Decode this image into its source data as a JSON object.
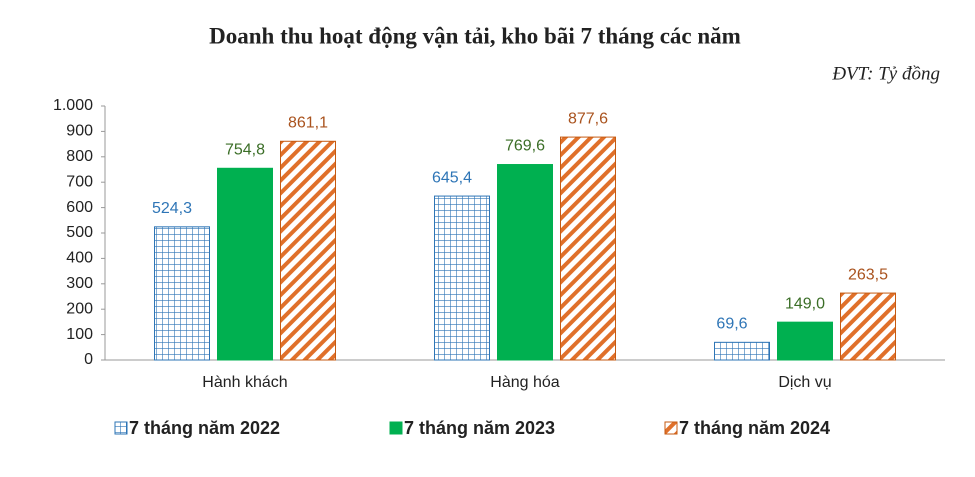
{
  "chart_data": {
    "type": "bar",
    "title": "Doanh thu hoạt động vận tải, kho bãi 7 tháng các năm",
    "unit_note": "ĐVT: Tỷ đồng",
    "categories": [
      "Hành khách",
      "Hàng hóa",
      "Dịch vụ"
    ],
    "series": [
      {
        "name": "7 tháng năm 2022",
        "color": "#2e75b6",
        "pattern": "grid",
        "values": [
          524.3,
          645.4,
          69.6
        ],
        "value_labels": [
          "524,3",
          "645,4",
          "69,6"
        ]
      },
      {
        "name": "7 tháng năm 2023",
        "color": "#00b050",
        "pattern": "solid",
        "values": [
          754.8,
          769.6,
          149.0
        ],
        "value_labels": [
          "754,8",
          "769,6",
          "149,0"
        ]
      },
      {
        "name": "7 tháng năm 2024",
        "color": "#c55a11",
        "pattern": "diagonal",
        "values": [
          861.1,
          877.6,
          263.5
        ],
        "value_labels": [
          "861,1",
          "877,6",
          "263,5"
        ]
      }
    ],
    "ylim": [
      0,
      1000
    ],
    "yticks": [
      0,
      100,
      200,
      300,
      400,
      500,
      600,
      700,
      800,
      900,
      {
        "value": 1000,
        "label": "1.000"
      }
    ],
    "grid": false,
    "legend": "bottom"
  }
}
